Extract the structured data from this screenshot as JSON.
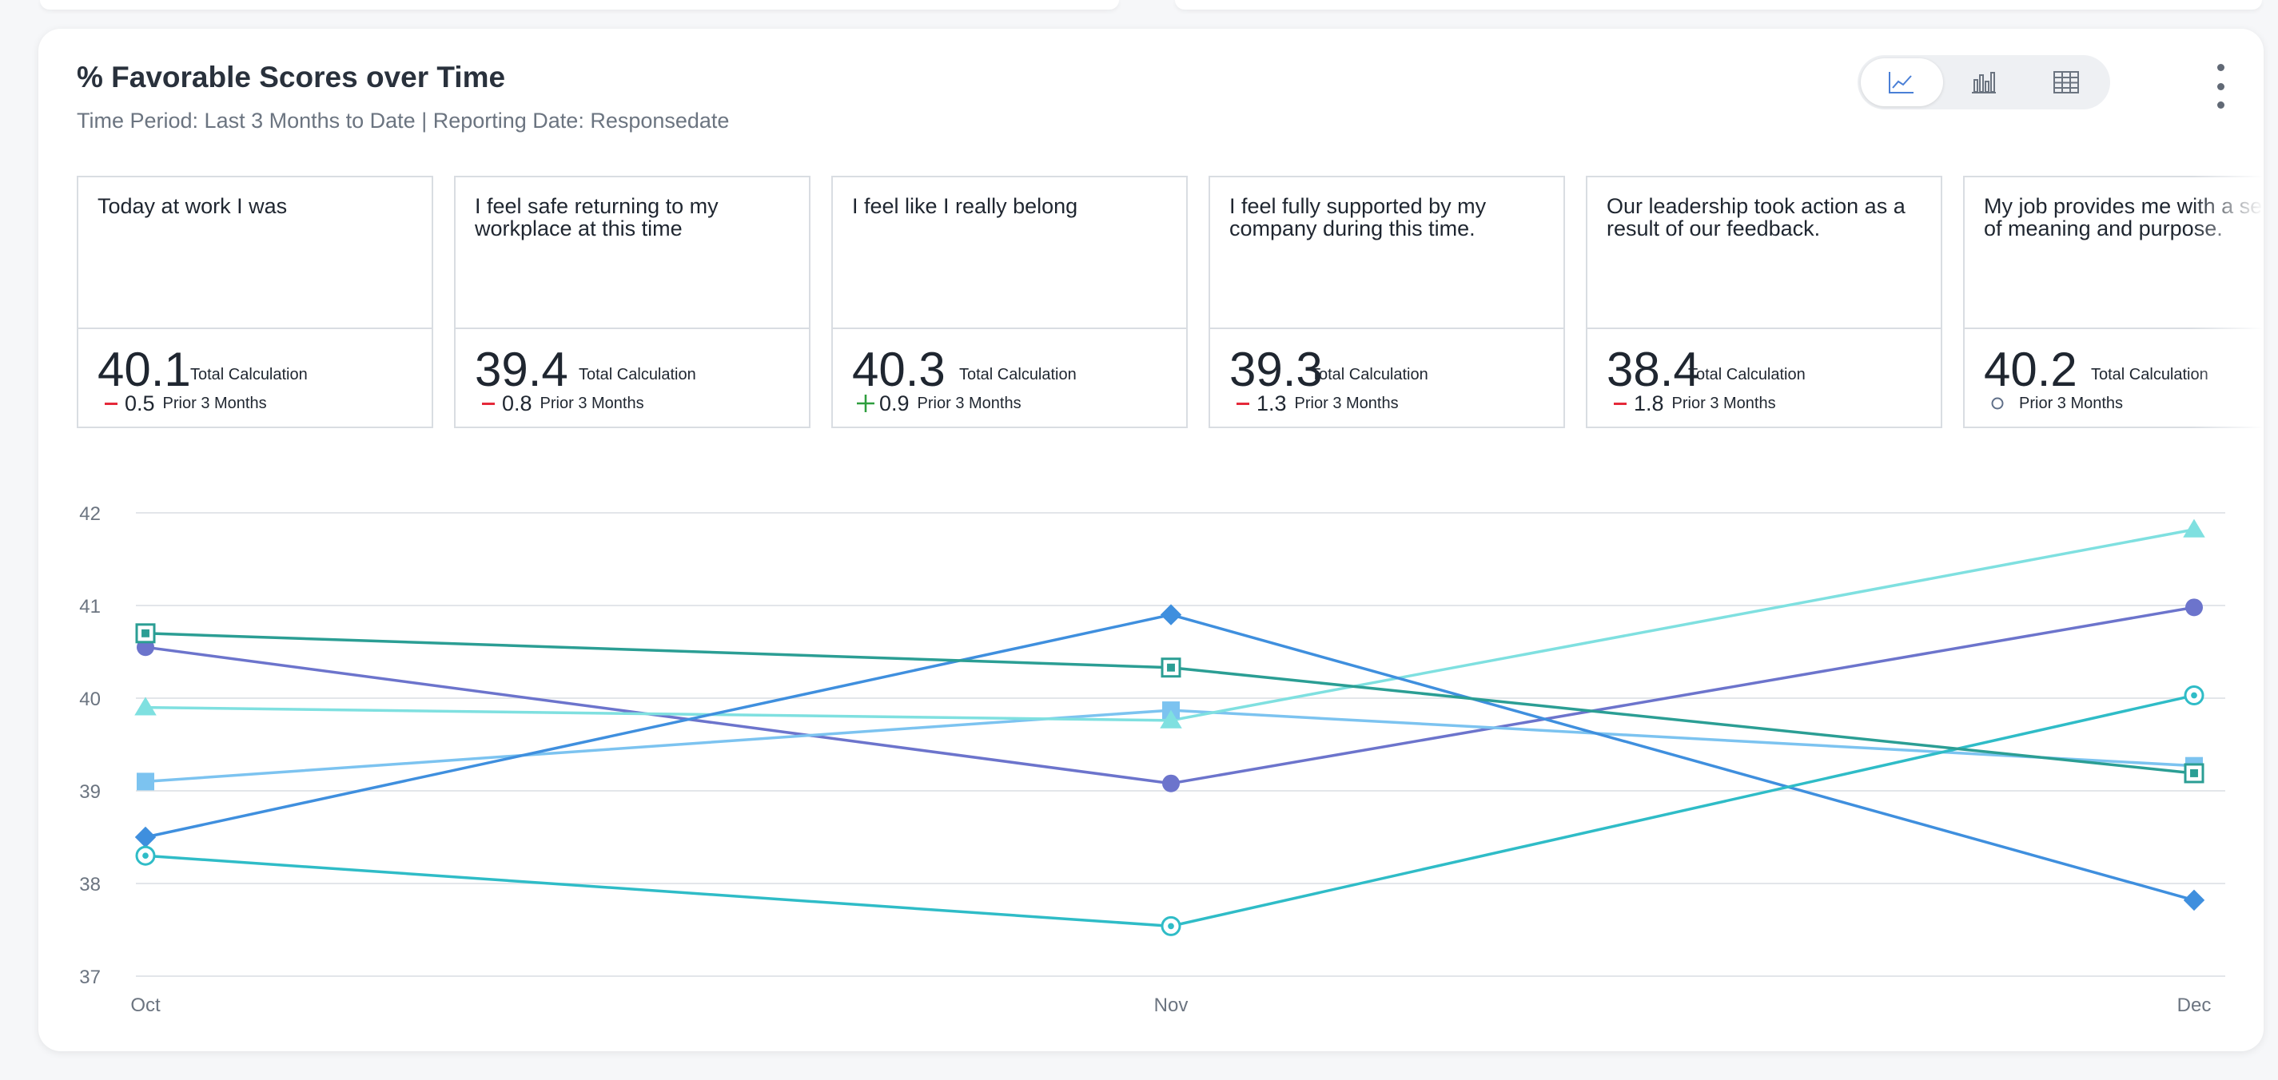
{
  "header": {
    "title": "% Favorable Scores over Time",
    "subtitle": "Time Period: Last 3 Months to Date | Reporting Date: Responsedate"
  },
  "view_toggle": {
    "active": "line",
    "buttons": [
      "line-chart-icon",
      "bar-chart-icon",
      "table-icon"
    ]
  },
  "cards": [
    {
      "question": "Today at work I was",
      "score": "40.1",
      "calc_label": "Total Calculation",
      "delta": "0.5",
      "delta_dir": "down",
      "prior_label": "Prior 3 Months"
    },
    {
      "question": "I feel safe returning to my\nworkplace at this time",
      "score": "39.4",
      "calc_label": "Total Calculation",
      "delta": "0.8",
      "delta_dir": "down",
      "prior_label": "Prior 3 Months"
    },
    {
      "question": "I feel like I really belong",
      "score": "40.3",
      "calc_label": "Total Calculation",
      "delta": "0.9",
      "delta_dir": "up",
      "prior_label": "Prior 3 Months"
    },
    {
      "question": "I feel fully supported by my\ncompany during this time.",
      "score": "39.3",
      "calc_label": "Total Calculation",
      "delta": "1.3",
      "delta_dir": "down",
      "prior_label": "Prior 3 Months"
    },
    {
      "question": "Our leadership took action as a\nresult of our feedback.",
      "score": "38.4",
      "calc_label": "Total Calculation",
      "delta": "1.8",
      "delta_dir": "down",
      "prior_label": "Prior 3 Months"
    },
    {
      "question": "My job provides me with a sense\nof meaning and purpose.",
      "score": "40.2",
      "calc_label": "Total Calculation",
      "delta": "",
      "delta_dir": "none",
      "prior_label": "Prior 3 Months"
    }
  ],
  "colors": {
    "up": "#2e9e3e",
    "down": "#e5293a",
    "grid": "#e3e6ea",
    "axis_text": "#6b7480"
  },
  "chart_data": {
    "type": "line",
    "title": "% Favorable Scores over Time",
    "x": [
      "Oct",
      "Nov",
      "Dec"
    ],
    "ylim": [
      37,
      42
    ],
    "yticks": [
      37,
      38,
      39,
      40,
      41,
      42
    ],
    "grid": true,
    "series": [
      {
        "name": "Today at work I was",
        "values": [
          40.55,
          39.08,
          40.98
        ],
        "color": "#6c74cc",
        "marker": "circle"
      },
      {
        "name": "I feel safe returning to my workplace at this time",
        "values": [
          39.1,
          39.87,
          39.27
        ],
        "color": "#7cc3f0",
        "marker": "square"
      },
      {
        "name": "I feel like I really belong",
        "values": [
          39.9,
          39.76,
          41.82
        ],
        "color": "#7fe0e0",
        "marker": "triangle"
      },
      {
        "name": "I feel fully supported by my company during this time.",
        "values": [
          38.5,
          40.9,
          37.82
        ],
        "color": "#3f8fde",
        "marker": "diamond"
      },
      {
        "name": "Our leadership took action as a result of our feedback.",
        "values": [
          38.3,
          37.54,
          40.03
        ],
        "color": "#2fbcc7",
        "marker": "ring"
      },
      {
        "name": "My job provides me with a sense of meaning and purpose.",
        "values": [
          40.7,
          40.33,
          39.19
        ],
        "color": "#2b9e94",
        "marker": "square-ring"
      }
    ]
  }
}
